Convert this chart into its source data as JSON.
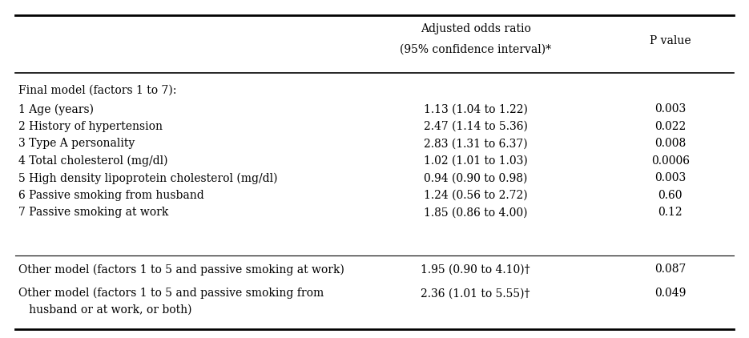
{
  "col2_header_line1": "Adjusted odds ratio",
  "col2_header_line2": "(95% confidence interval)*",
  "col3_header": "P value",
  "rows": [
    {
      "col1": "Final model (factors 1 to 7):",
      "col2": "",
      "col3": "",
      "multiline": false
    },
    {
      "col1": "1 Age (years)",
      "col2": "1.13 (1.04 to 1.22)",
      "col3": "0.003",
      "multiline": false
    },
    {
      "col1": "2 History of hypertension",
      "col2": "2.47 (1.14 to 5.36)",
      "col3": "0.022",
      "multiline": false
    },
    {
      "col1": "3 Type A personality",
      "col2": "2.83 (1.31 to 6.37)",
      "col3": "0.008",
      "multiline": false
    },
    {
      "col1": "4 Total cholesterol (mg/dl)",
      "col2": "1.02 (1.01 to 1.03)",
      "col3": "0.0006",
      "multiline": false
    },
    {
      "col1": "5 High density lipoprotein cholesterol (mg/dl)",
      "col2": "0.94 (0.90 to 0.98)",
      "col3": "0.003",
      "multiline": false
    },
    {
      "col1": "6 Passive smoking from husband",
      "col2": "1.24 (0.56 to 2.72)",
      "col3": "0.60",
      "multiline": false
    },
    {
      "col1": "7 Passive smoking at work",
      "col2": "1.85 (0.86 to 4.00)",
      "col3": "0.12",
      "multiline": false
    },
    {
      "col1": "Other model (factors 1 to 5 and passive smoking at work)",
      "col2": "1.95 (0.90 to 4.10)†",
      "col3": "0.087",
      "multiline": false
    },
    {
      "col1_line1": "Other model (factors 1 to 5 and passive smoking from",
      "col1_line2": "   husband or at work, or both)",
      "col2": "2.36 (1.01 to 5.55)†",
      "col3": "0.049",
      "multiline": true
    }
  ],
  "bg_color": "#ffffff",
  "text_color": "#000000",
  "font_size": 10.0,
  "fig_width": 9.35,
  "fig_height": 4.22
}
